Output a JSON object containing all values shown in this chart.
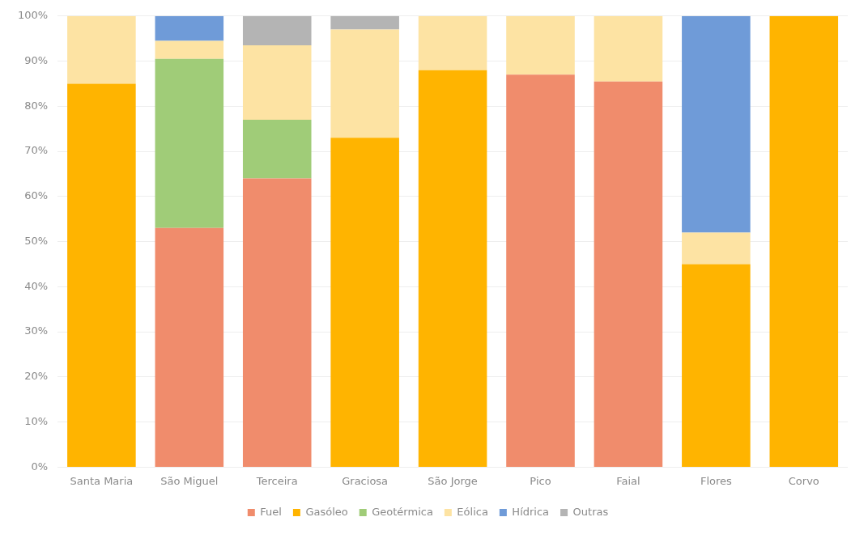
{
  "chart_data": {
    "type": "bar",
    "stacked": true,
    "categories": [
      "Santa Maria",
      "São Miguel",
      "Terceira",
      "Graciosa",
      "São Jorge",
      "Pico",
      "Faial",
      "Flores",
      "Corvo"
    ],
    "series": [
      {
        "name": "Fuel",
        "color": "#f08c6c",
        "values": [
          null,
          53,
          64,
          null,
          null,
          87,
          85.5,
          null,
          null
        ]
      },
      {
        "name": "Gasóleo",
        "color": "#ffb400",
        "values": [
          85,
          null,
          null,
          73,
          88,
          null,
          null,
          45,
          100
        ]
      },
      {
        "name": "Geotérmica",
        "color": "#a0cc78",
        "values": [
          null,
          37.5,
          13,
          null,
          null,
          null,
          null,
          null,
          null
        ]
      },
      {
        "name": "Eólica",
        "color": "#fde3a3",
        "values": [
          15,
          4,
          16.5,
          24,
          12,
          13,
          14.5,
          7,
          null
        ]
      },
      {
        "name": "Hídrica",
        "color": "#6f9bd8",
        "values": [
          null,
          5.5,
          null,
          null,
          null,
          null,
          null,
          48,
          null
        ]
      },
      {
        "name": "Outras",
        "color": "#b4b4b4",
        "values": [
          null,
          null,
          6.5,
          3,
          null,
          null,
          null,
          null,
          null
        ]
      }
    ],
    "ylim": [
      0,
      100
    ],
    "yticks": [
      {
        "value": 0,
        "label": "0%"
      },
      {
        "value": 10,
        "label": "10%"
      },
      {
        "value": 20,
        "label": "20%"
      },
      {
        "value": 30,
        "label": "30%"
      },
      {
        "value": 40,
        "label": "40%"
      },
      {
        "value": 50,
        "label": "50%"
      },
      {
        "value": 60,
        "label": "60%"
      },
      {
        "value": 70,
        "label": "70%"
      },
      {
        "value": 80,
        "label": "80%"
      },
      {
        "value": 90,
        "label": "90%"
      },
      {
        "value": 100,
        "label": "100%"
      }
    ],
    "grid": "y",
    "legend": "bottom"
  }
}
